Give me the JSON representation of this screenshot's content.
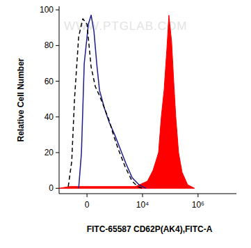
{
  "chart_data": {
    "type": "line",
    "x_label": "FITC-65587 CD62P(AK4),FITC-A",
    "y_label": "Relative Cell Number",
    "annotations": [
      {
        "text": "WWW.PTGLAB.COM"
      }
    ],
    "log": "x",
    "xlim": [
      -1000,
      24000000
    ],
    "ylim": [
      -3,
      102
    ],
    "xticks": [
      0,
      {
        "value": 10000,
        "label": "10⁴"
      },
      {
        "value": 1000000,
        "label": "10⁶"
      }
    ],
    "yticks": [
      0,
      20,
      40,
      60,
      80,
      100
    ],
    "grid": false,
    "series": [
      {
        "type": "area",
        "color": "#ff0000",
        "line_style": "solid",
        "x": [
          -1000,
          -400,
          0,
          2000,
          5620,
          14980,
          23700,
          37600,
          47300,
          59600,
          75000,
          89000,
          112000,
          133000,
          158000,
          199000,
          266000,
          421000,
          749000
        ],
        "values": [
          0,
          1,
          1,
          1,
          1,
          4,
          10,
          20,
          40,
          55,
          78,
          97,
          82,
          60,
          40,
          20,
          9,
          2,
          0
        ]
      },
      {
        "type": "line",
        "color": "#1c1c8a",
        "line_style": "solid",
        "x": [
          -149,
          -95,
          -46,
          23,
          70,
          122,
          179,
          246,
          398,
          614,
          990,
          1578,
          2510,
          4220,
          7500,
          13340
        ],
        "values": [
          0,
          20,
          70,
          92,
          97,
          88,
          70,
          55,
          45,
          37,
          30,
          22,
          14,
          6,
          2,
          0
        ]
      },
      {
        "type": "line",
        "color": "#000000",
        "line_style": "dashed",
        "x": [
          -452,
          -326,
          -246,
          -149,
          -70,
          0,
          70,
          149,
          246,
          398,
          614,
          882,
          1326,
          2368,
          4220,
          6680,
          10000
        ],
        "values": [
          1,
          15,
          50,
          85,
          95,
          92,
          68,
          57,
          52,
          45,
          38,
          30,
          22,
          12,
          4,
          1,
          0
        ]
      }
    ]
  }
}
